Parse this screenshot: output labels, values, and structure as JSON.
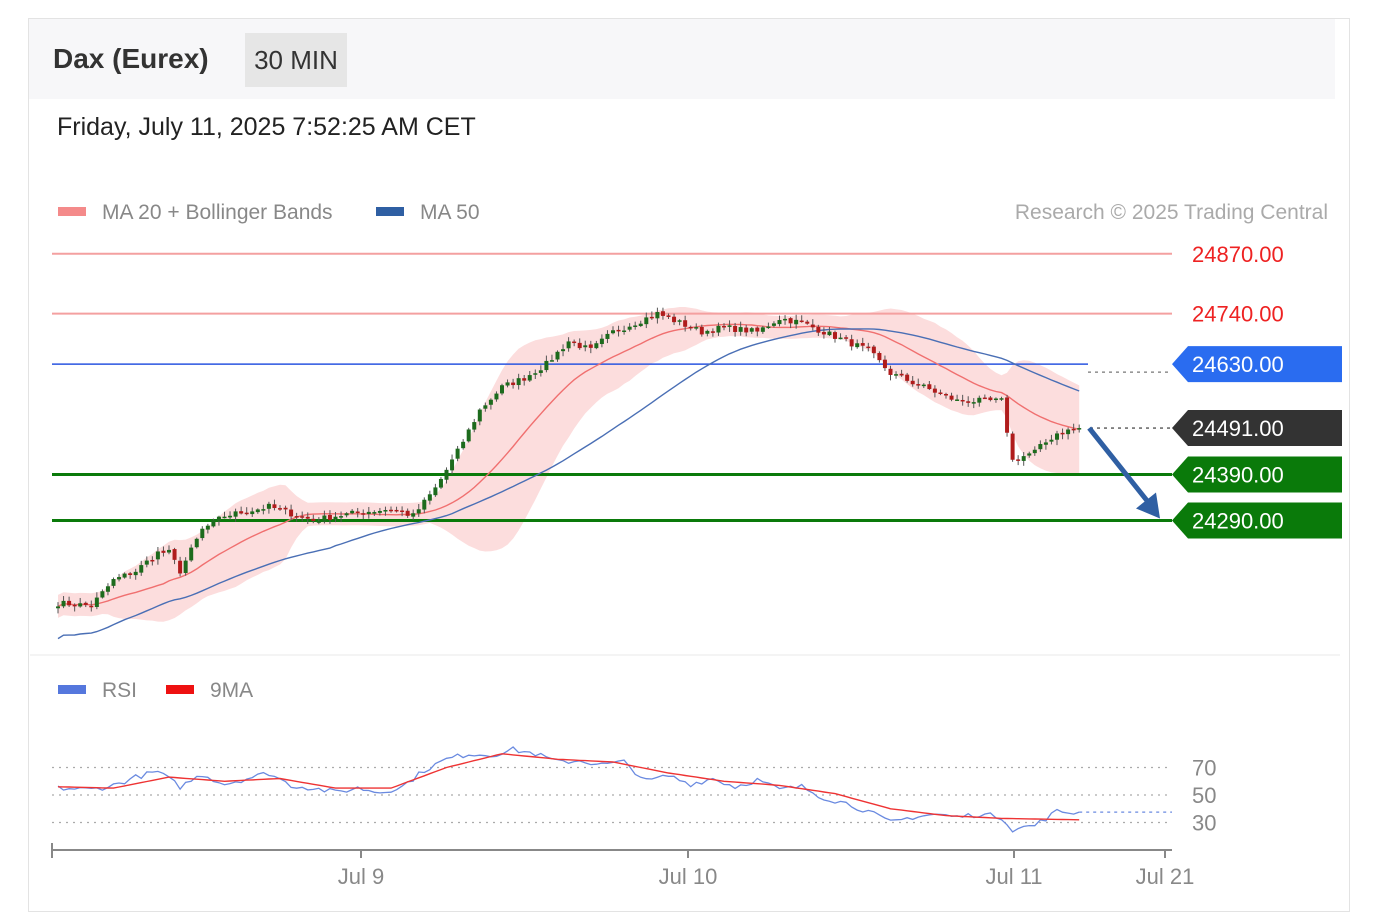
{
  "header": {
    "instrument": "Dax (Eurex)",
    "timeframe": "30 MIN",
    "datetime": "Friday, July 11, 2025 7:52:25 AM CET"
  },
  "legend": {
    "items": [
      {
        "label": "MA 20 + Bollinger Bands",
        "color": "#f48a8a"
      },
      {
        "label": "MA 50",
        "color": "#2f5fa3"
      }
    ],
    "credit": "Research © 2025 Trading Central"
  },
  "rsi_legend": {
    "items": [
      {
        "label": "RSI",
        "color": "#5577dd"
      },
      {
        "label": "9MA",
        "color": "#ee1111"
      }
    ]
  },
  "levels": [
    {
      "value": 24870,
      "label": "24870.00",
      "kind": "resistance",
      "color": "#ee2222"
    },
    {
      "value": 24740,
      "label": "24740.00",
      "kind": "resistance",
      "color": "#ee2222"
    },
    {
      "value": 24630,
      "label": "24630.00",
      "kind": "ma50",
      "color": "#2a6cf0"
    },
    {
      "value": 24491,
      "label": "24491.00",
      "kind": "last",
      "color": "#333333"
    },
    {
      "value": 24390,
      "label": "24390.00",
      "kind": "support",
      "color": "#0a7a0a"
    },
    {
      "value": 24290,
      "label": "24290.00",
      "kind": "support",
      "color": "#0a7a0a"
    }
  ],
  "chart_data": [
    {
      "type": "candlestick",
      "title": "Dax (Eurex)",
      "timeframe": "30 MIN",
      "x_ticks": [
        "Jul 9",
        "Jul 10",
        "Jul 11",
        "Jul 21"
      ],
      "ylim": [
        24030,
        24900
      ],
      "close_keypoints": [
        [
          0,
          24110
        ],
        [
          6,
          24105
        ],
        [
          10,
          24160
        ],
        [
          14,
          24180
        ],
        [
          18,
          24220
        ],
        [
          20,
          24220
        ],
        [
          22,
          24180
        ],
        [
          26,
          24270
        ],
        [
          30,
          24300
        ],
        [
          34,
          24310
        ],
        [
          38,
          24320
        ],
        [
          42,
          24305
        ],
        [
          46,
          24290
        ],
        [
          50,
          24300
        ],
        [
          56,
          24310
        ],
        [
          60,
          24315
        ],
        [
          64,
          24300
        ],
        [
          68,
          24360
        ],
        [
          72,
          24440
        ],
        [
          76,
          24530
        ],
        [
          80,
          24580
        ],
        [
          84,
          24600
        ],
        [
          88,
          24630
        ],
        [
          92,
          24680
        ],
        [
          96,
          24660
        ],
        [
          100,
          24700
        ],
        [
          104,
          24720
        ],
        [
          108,
          24740
        ],
        [
          112,
          24720
        ],
        [
          116,
          24700
        ],
        [
          120,
          24710
        ],
        [
          126,
          24700
        ],
        [
          130,
          24730
        ],
        [
          134,
          24720
        ],
        [
          138,
          24700
        ],
        [
          142,
          24680
        ],
        [
          146,
          24660
        ],
        [
          150,
          24610
        ],
        [
          154,
          24590
        ],
        [
          158,
          24570
        ],
        [
          162,
          24550
        ],
        [
          166,
          24550
        ],
        [
          170,
          24550
        ],
        [
          172,
          24420
        ],
        [
          176,
          24440
        ],
        [
          180,
          24480
        ],
        [
          184,
          24491
        ]
      ],
      "forecast": {
        "from": 24491,
        "to": 24290,
        "direction": "down"
      }
    },
    {
      "type": "line",
      "series": [
        {
          "name": "RSI"
        },
        {
          "name": "9MA"
        }
      ],
      "y_ticks": [
        70,
        50,
        30
      ],
      "ylim": [
        10,
        90
      ],
      "rsi_keypoints": [
        [
          0,
          55
        ],
        [
          6,
          54
        ],
        [
          10,
          57
        ],
        [
          14,
          63
        ],
        [
          18,
          67
        ],
        [
          22,
          56
        ],
        [
          26,
          65
        ],
        [
          30,
          58
        ],
        [
          34,
          62
        ],
        [
          38,
          66
        ],
        [
          42,
          57
        ],
        [
          46,
          55
        ],
        [
          50,
          52
        ],
        [
          54,
          55
        ],
        [
          58,
          52
        ],
        [
          62,
          56
        ],
        [
          66,
          68
        ],
        [
          70,
          76
        ],
        [
          74,
          80
        ],
        [
          78,
          79
        ],
        [
          82,
          83
        ],
        [
          86,
          80
        ],
        [
          90,
          74
        ],
        [
          94,
          75
        ],
        [
          98,
          72
        ],
        [
          102,
          74
        ],
        [
          106,
          60
        ],
        [
          110,
          64
        ],
        [
          114,
          58
        ],
        [
          118,
          62
        ],
        [
          122,
          56
        ],
        [
          126,
          61
        ],
        [
          130,
          54
        ],
        [
          134,
          56
        ],
        [
          138,
          48
        ],
        [
          142,
          44
        ],
        [
          146,
          38
        ],
        [
          150,
          30
        ],
        [
          154,
          34
        ],
        [
          158,
          36
        ],
        [
          162,
          34
        ],
        [
          166,
          36
        ],
        [
          170,
          34
        ],
        [
          172,
          25
        ],
        [
          176,
          28
        ],
        [
          180,
          38
        ],
        [
          184,
          37
        ]
      ],
      "ma9_keypoints": [
        [
          0,
          56
        ],
        [
          10,
          55
        ],
        [
          20,
          63
        ],
        [
          30,
          60
        ],
        [
          40,
          62
        ],
        [
          50,
          55
        ],
        [
          60,
          55
        ],
        [
          70,
          70
        ],
        [
          80,
          80
        ],
        [
          90,
          76
        ],
        [
          100,
          74
        ],
        [
          110,
          66
        ],
        [
          120,
          60
        ],
        [
          130,
          57
        ],
        [
          140,
          51
        ],
        [
          150,
          40
        ],
        [
          160,
          35
        ],
        [
          170,
          33
        ],
        [
          184,
          32
        ]
      ]
    }
  ]
}
